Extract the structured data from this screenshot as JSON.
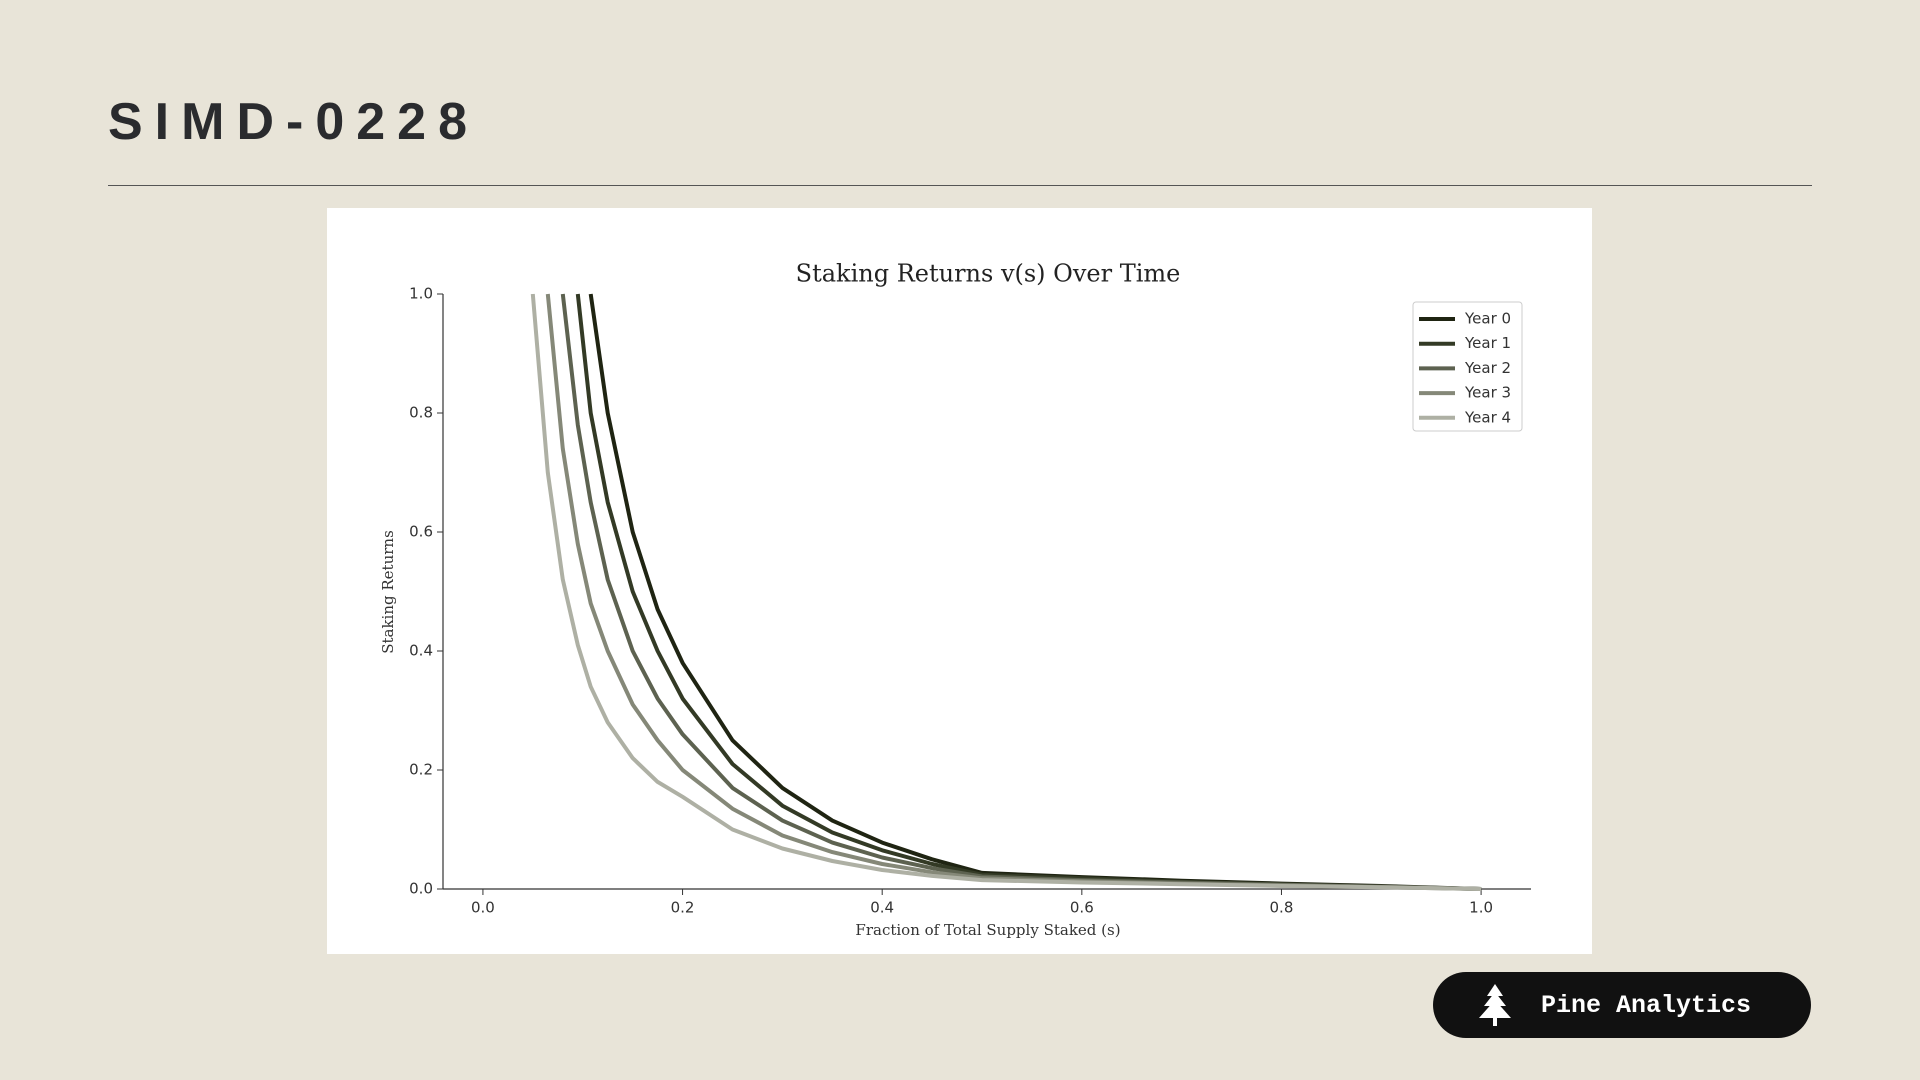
{
  "header": {
    "title": "SIMD-0228"
  },
  "chart_data": {
    "type": "line",
    "title": "Staking Returns v(s) Over Time",
    "x_label": "Fraction of Total Supply Staked (s)",
    "y_label": "Staking Returns",
    "x": [
      0.05,
      0.065,
      0.08,
      0.095,
      0.108,
      0.125,
      0.15,
      0.175,
      0.2,
      0.25,
      0.3,
      0.35,
      0.4,
      0.45,
      0.5,
      0.6,
      0.7,
      0.8,
      0.9,
      1.0
    ],
    "series": [
      {
        "name": "Year 0",
        "color": "#1f2412",
        "values": [
          null,
          null,
          null,
          null,
          1.0,
          0.8,
          0.6,
          0.47,
          0.38,
          0.25,
          0.17,
          0.115,
          0.078,
          0.05,
          0.027,
          0.02,
          0.014,
          0.009,
          0.005,
          0.0
        ]
      },
      {
        "name": "Year 1",
        "color": "#333a25",
        "values": [
          null,
          null,
          null,
          1.0,
          0.8,
          0.65,
          0.5,
          0.4,
          0.32,
          0.21,
          0.14,
          0.095,
          0.065,
          0.042,
          0.024,
          0.018,
          0.012,
          0.008,
          0.004,
          0.0
        ]
      },
      {
        "name": "Year 2",
        "color": "#5d6250",
        "values": [
          null,
          null,
          1.0,
          0.78,
          0.65,
          0.52,
          0.4,
          0.32,
          0.26,
          0.17,
          0.115,
          0.078,
          0.053,
          0.035,
          0.021,
          0.015,
          0.011,
          0.007,
          0.004,
          0.0
        ]
      },
      {
        "name": "Year 3",
        "color": "#858878",
        "values": [
          null,
          1.0,
          0.74,
          0.58,
          0.48,
          0.4,
          0.31,
          0.25,
          0.2,
          0.135,
          0.09,
          0.062,
          0.042,
          0.028,
          0.018,
          0.013,
          0.009,
          0.006,
          0.003,
          0.0
        ]
      },
      {
        "name": "Year 4",
        "color": "#aeb0a4",
        "values": [
          1.0,
          0.7,
          0.52,
          0.41,
          0.34,
          0.28,
          0.22,
          0.18,
          0.155,
          0.1,
          0.068,
          0.047,
          0.032,
          0.022,
          0.015,
          0.011,
          0.008,
          0.005,
          0.003,
          0.0
        ]
      }
    ],
    "xlim": [
      -0.04,
      1.05
    ],
    "ylim": [
      0,
      1
    ],
    "xticks": [
      {
        "value": 0,
        "label": "0.0"
      },
      0.2,
      0.4,
      0.6,
      0.8,
      {
        "value": 1,
        "label": "1.0"
      }
    ],
    "yticks": [
      {
        "value": 0,
        "label": "0.0"
      },
      0.2,
      0.4,
      0.6,
      0.8,
      {
        "value": 1,
        "label": "1.0"
      }
    ],
    "grid": false,
    "legend": "upper right"
  },
  "badge": {
    "label": "Pine Analytics"
  }
}
